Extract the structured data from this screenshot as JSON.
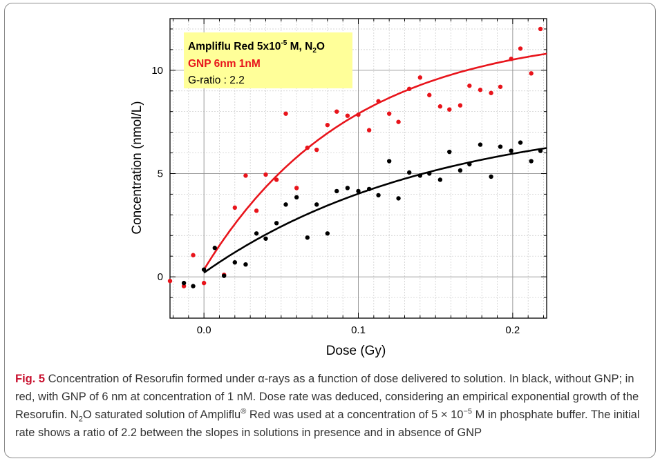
{
  "chart_data": {
    "type": "scatter",
    "xlabel": "Dose (Gy)",
    "ylabel": "Concentration (nmol/L)",
    "xlim": [
      -0.022,
      0.222
    ],
    "ylim": [
      -2.0,
      12.5
    ],
    "xticks": [
      0.0,
      0.1,
      0.2
    ],
    "xtick_labels": [
      "0.0",
      "0.1",
      "0.2"
    ],
    "yticks": [
      0,
      5,
      10
    ],
    "ytick_labels": [
      "0",
      "5",
      "10"
    ],
    "grid": true,
    "legend_position": "top-left",
    "legend": {
      "line1_main": "Ampliflu Red 5x10",
      "line1_sup": "-5",
      "line1_mid": " M, N",
      "line1_sub": "2",
      "line1_end": "O",
      "line2": "GNP 6nm 1nM",
      "line3": "G-ratio : 2.2",
      "background": "#ffff99"
    },
    "series": [
      {
        "name": "GNP 6nm 1nM",
        "color": "#e8141b",
        "points": [
          [
            -0.022,
            -0.2
          ],
          [
            -0.013,
            -0.45
          ],
          [
            -0.007,
            1.05
          ],
          [
            0.0,
            -0.3
          ],
          [
            0.013,
            0.1
          ],
          [
            0.02,
            3.35
          ],
          [
            0.027,
            4.9
          ],
          [
            0.034,
            3.2
          ],
          [
            0.04,
            4.95
          ],
          [
            0.047,
            4.7
          ],
          [
            0.053,
            7.9
          ],
          [
            0.06,
            4.3
          ],
          [
            0.067,
            6.25
          ],
          [
            0.073,
            6.15
          ],
          [
            0.08,
            7.35
          ],
          [
            0.086,
            8.0
          ],
          [
            0.093,
            7.8
          ],
          [
            0.1,
            7.85
          ],
          [
            0.107,
            7.1
          ],
          [
            0.113,
            8.5
          ],
          [
            0.12,
            7.9
          ],
          [
            0.126,
            7.5
          ],
          [
            0.133,
            9.1
          ],
          [
            0.14,
            9.65
          ],
          [
            0.146,
            8.8
          ],
          [
            0.153,
            8.25
          ],
          [
            0.159,
            8.1
          ],
          [
            0.166,
            8.3
          ],
          [
            0.172,
            9.25
          ],
          [
            0.179,
            9.05
          ],
          [
            0.186,
            8.9
          ],
          [
            0.192,
            9.2
          ],
          [
            0.199,
            10.55
          ],
          [
            0.205,
            11.05
          ],
          [
            0.212,
            9.85
          ],
          [
            0.218,
            12.0
          ]
        ],
        "fit": {
          "a": 11.55,
          "k": 10.6,
          "c": 0.35
        }
      },
      {
        "name": "",
        "color": "#000000",
        "points": [
          [
            -0.013,
            -0.3
          ],
          [
            -0.007,
            -0.45
          ],
          [
            0.0,
            0.35
          ],
          [
            0.007,
            1.4
          ],
          [
            0.013,
            0.05
          ],
          [
            0.02,
            0.7
          ],
          [
            0.027,
            0.6
          ],
          [
            0.034,
            2.1
          ],
          [
            0.04,
            1.85
          ],
          [
            0.047,
            2.6
          ],
          [
            0.053,
            3.5
          ],
          [
            0.06,
            3.85
          ],
          [
            0.067,
            1.9
          ],
          [
            0.073,
            3.5
          ],
          [
            0.08,
            2.1
          ],
          [
            0.086,
            4.15
          ],
          [
            0.093,
            4.3
          ],
          [
            0.1,
            4.15
          ],
          [
            0.107,
            4.25
          ],
          [
            0.113,
            3.95
          ],
          [
            0.12,
            5.6
          ],
          [
            0.126,
            3.8
          ],
          [
            0.133,
            5.05
          ],
          [
            0.14,
            4.9
          ],
          [
            0.146,
            5.0
          ],
          [
            0.153,
            4.7
          ],
          [
            0.159,
            6.05
          ],
          [
            0.166,
            5.15
          ],
          [
            0.172,
            5.45
          ],
          [
            0.179,
            6.4
          ],
          [
            0.186,
            4.85
          ],
          [
            0.192,
            6.3
          ],
          [
            0.199,
            6.1
          ],
          [
            0.205,
            6.5
          ],
          [
            0.212,
            5.6
          ],
          [
            0.218,
            6.1
          ]
        ],
        "fit": {
          "a": 7.75,
          "k": 6.8,
          "c": 0.2
        }
      }
    ]
  },
  "caption": {
    "label": "Fig. 5",
    "text1": "  Concentration of Resorufin formed under α-rays as a function of dose delivered to solution. In black, without GNP; in red, with GNP of 6 nm at concentration of 1 nM. Dose rate was deduced, considering an empirical exponential growth of the Resorufin. N",
    "sub1": "2",
    "text2": "O saturated solution of Ampliflu",
    "sup1": "®",
    "text3": " Red was used at a concentration of 5 × 10",
    "sup2": "−5",
    "text4": " M in phosphate buffer. The initial rate shows a ratio of 2.2 between the slopes in solutions in presence and in absence of GNP"
  }
}
